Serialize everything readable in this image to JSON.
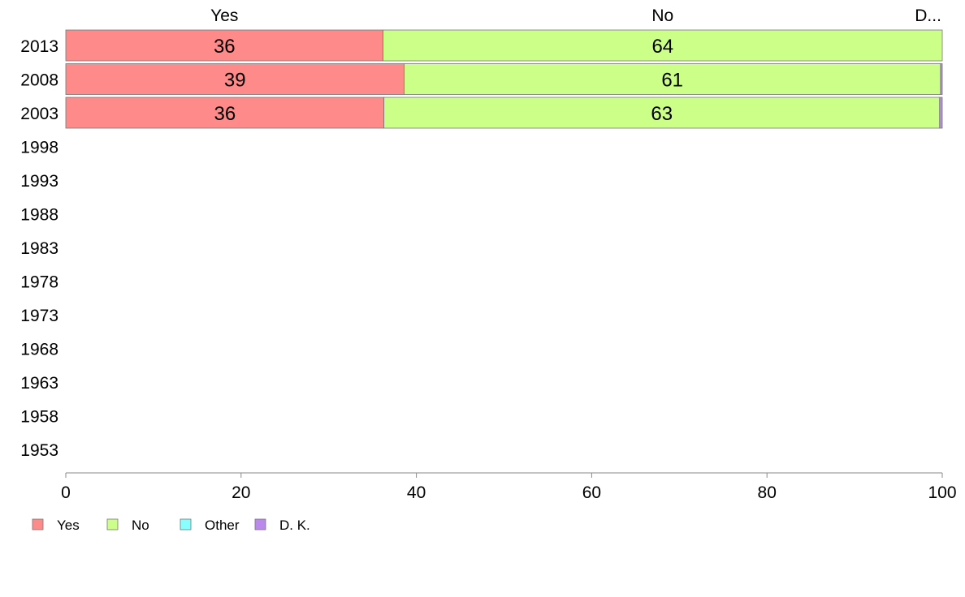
{
  "chart_data": {
    "type": "bar",
    "orientation": "horizontal",
    "stacked": true,
    "categories": [
      "2013",
      "2008",
      "2003",
      "1998",
      "1993",
      "1988",
      "1983",
      "1978",
      "1973",
      "1968",
      "1963",
      "1958",
      "1953"
    ],
    "series": [
      {
        "name": "Yes",
        "color": "#ff8a8a",
        "values": [
          36.2,
          38.6,
          36.3,
          null,
          null,
          null,
          null,
          null,
          null,
          null,
          null,
          null,
          null
        ],
        "labels": [
          "36",
          "39",
          "36",
          "",
          "",
          "",
          "",
          "",
          "",
          "",
          "",
          "",
          ""
        ]
      },
      {
        "name": "No",
        "color": "#ccff88",
        "values": [
          63.8,
          61.2,
          63.4,
          null,
          null,
          null,
          null,
          null,
          null,
          null,
          null,
          null,
          null
        ],
        "labels": [
          "64",
          "61",
          "63",
          "",
          "",
          "",
          "",
          "",
          "",
          "",
          "",
          "",
          ""
        ]
      },
      {
        "name": "Other",
        "color": "#88ffff",
        "values": [
          0,
          0,
          0,
          null,
          null,
          null,
          null,
          null,
          null,
          null,
          null,
          null,
          null
        ],
        "labels": [
          "",
          "",
          "",
          "",
          "",
          "",
          "",
          "",
          "",
          "",
          "",
          "",
          ""
        ]
      },
      {
        "name": "D. K.",
        "color": "#bb88ee",
        "values": [
          0,
          0.2,
          0.3,
          null,
          null,
          null,
          null,
          null,
          null,
          null,
          null,
          null,
          null
        ],
        "labels": [
          "",
          "",
          "",
          "",
          "",
          "",
          "",
          "",
          "",
          "",
          "",
          "",
          ""
        ]
      }
    ],
    "column_labels": [
      {
        "text": "Yes",
        "at": 18.1
      },
      {
        "text": "No",
        "at": 68.1
      },
      {
        "text": "D...",
        "at": 99.9
      }
    ],
    "xlim": [
      0,
      100
    ],
    "xticks": [
      0,
      20,
      40,
      60,
      80,
      100
    ],
    "xlabel": "",
    "ylabel": "",
    "title": "",
    "legend": {
      "position": "bottom-left",
      "entries": [
        "Yes",
        "No",
        "Other",
        "D. K."
      ]
    },
    "grid": false,
    "axis_color": "#888888"
  }
}
